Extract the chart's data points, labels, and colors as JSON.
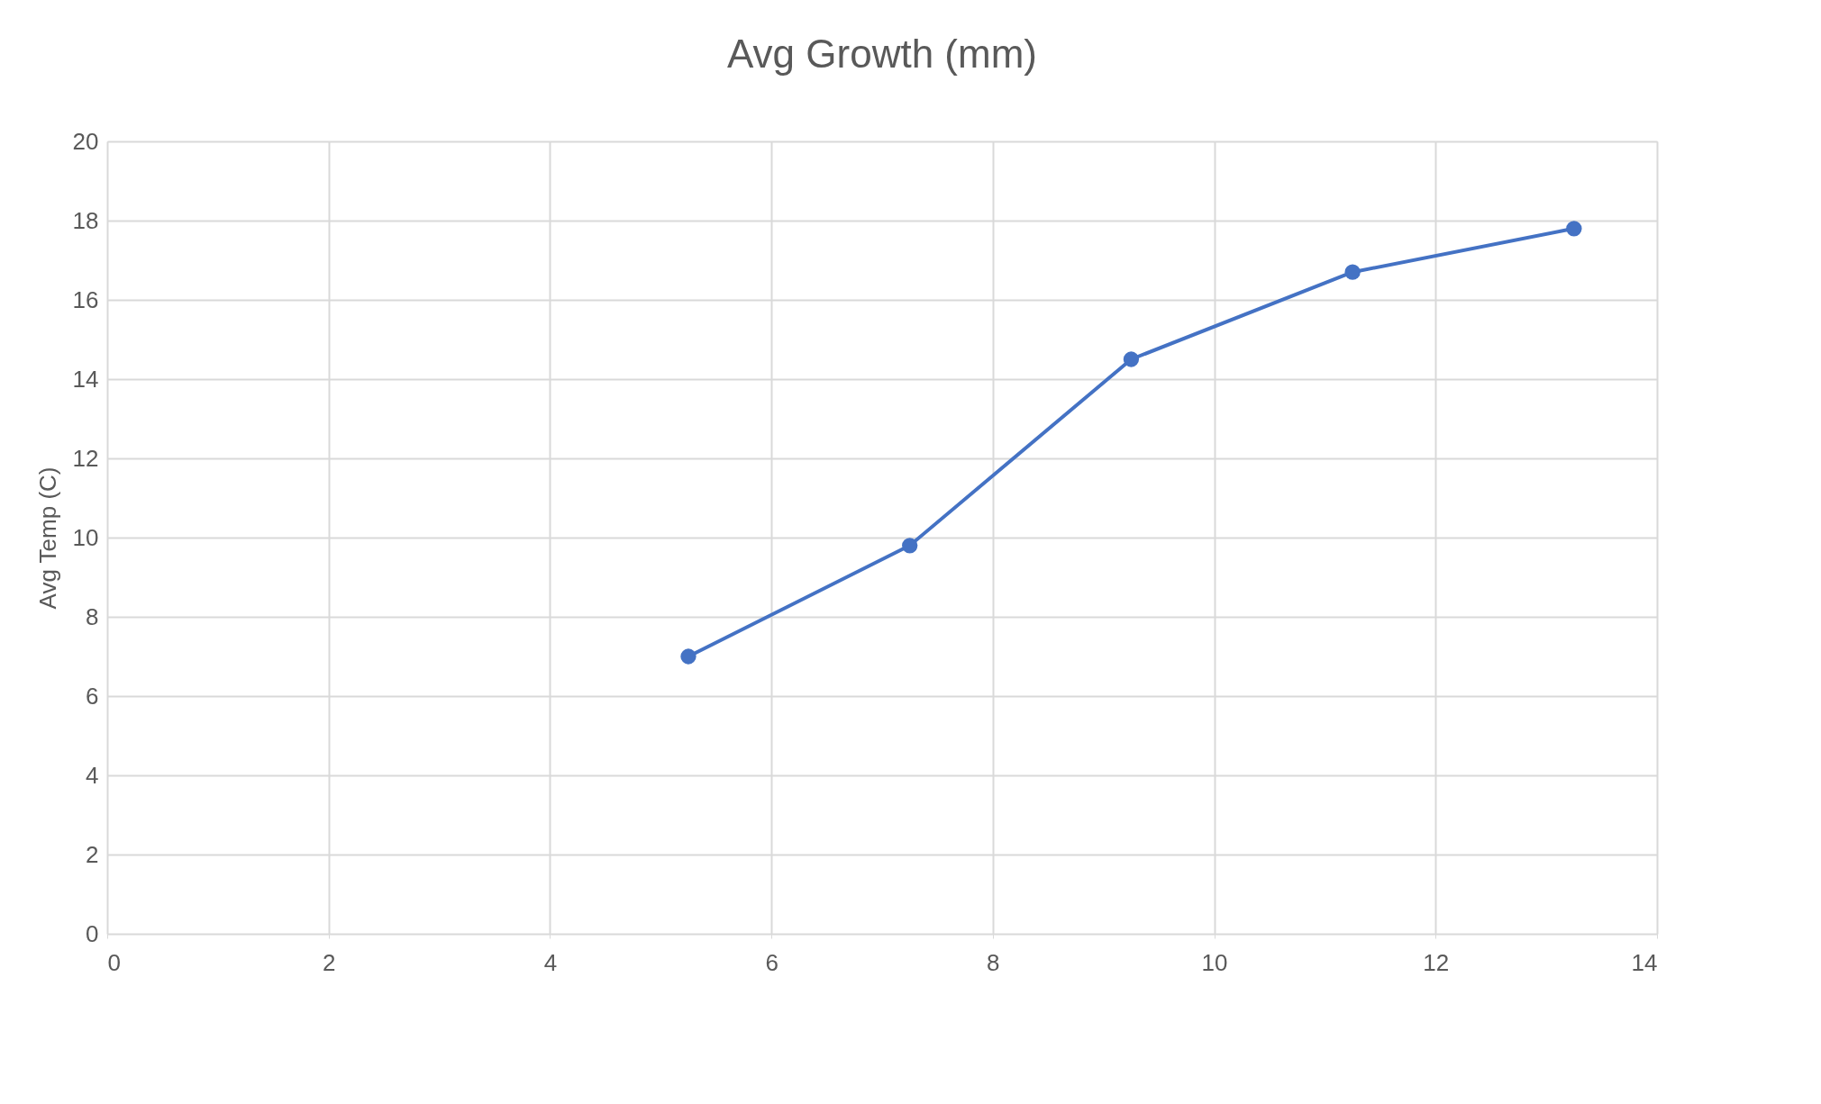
{
  "chart_data": {
    "type": "line",
    "title": "Avg Growth (mm)",
    "ylabel": "Avg Temp (C)",
    "x": [
      5.25,
      7.25,
      9.25,
      11.25,
      13.25
    ],
    "series": [
      {
        "color": "#4472c4",
        "values": [
          7.0,
          9.8,
          14.5,
          16.7,
          17.8
        ]
      }
    ],
    "xlim": [
      0,
      14
    ],
    "xticks": [
      0,
      2,
      4,
      6,
      8,
      10,
      12,
      14
    ],
    "ylim": [
      0,
      20
    ],
    "yticks": [
      0,
      2,
      4,
      6,
      8,
      10,
      12,
      14,
      16,
      18,
      20
    ],
    "grid": true,
    "marker": "circle",
    "line_style": "solid"
  }
}
